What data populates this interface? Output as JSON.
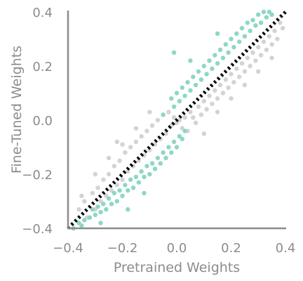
{
  "chart_data": {
    "type": "scatter",
    "title": "",
    "xlabel": "Pretrained Weights",
    "ylabel": "Fine-Tuned Weights",
    "xlim": [
      -0.4,
      0.4
    ],
    "ylim": [
      -0.4,
      0.4
    ],
    "xticks": [
      -0.4,
      -0.2,
      0.0,
      0.2,
      0.4
    ],
    "yticks": [
      -0.4,
      -0.2,
      0.0,
      0.2,
      0.4
    ],
    "xtick_labels": [
      "−0.4",
      "−0.2",
      "0.0",
      "0.2",
      "0.4"
    ],
    "ytick_labels": [
      "−0.4",
      "−0.2",
      "0.0",
      "0.2",
      "0.4"
    ],
    "grid": false,
    "reference_line": {
      "style": "dotted",
      "color": "#000000",
      "x": [
        -0.4,
        0.4
      ],
      "y": [
        -0.4,
        0.4
      ]
    },
    "series": [
      {
        "color": "#d3d3d3",
        "points": [
          [
            -0.36,
            -0.33
          ],
          [
            -0.34,
            -0.3
          ],
          [
            -0.33,
            -0.36
          ],
          [
            -0.31,
            -0.27
          ],
          [
            -0.3,
            -0.33
          ],
          [
            -0.29,
            -0.25
          ],
          [
            -0.28,
            -0.3
          ],
          [
            -0.27,
            -0.22
          ],
          [
            -0.26,
            -0.28
          ],
          [
            -0.25,
            -0.2
          ],
          [
            -0.24,
            -0.26
          ],
          [
            -0.23,
            -0.17
          ],
          [
            -0.22,
            -0.24
          ],
          [
            -0.21,
            -0.15
          ],
          [
            -0.2,
            -0.22
          ],
          [
            -0.19,
            -0.12
          ],
          [
            -0.18,
            -0.19
          ],
          [
            -0.17,
            -0.1
          ],
          [
            -0.16,
            -0.17
          ],
          [
            -0.15,
            -0.08
          ],
          [
            -0.14,
            -0.15
          ],
          [
            -0.13,
            -0.06
          ],
          [
            -0.12,
            -0.13
          ],
          [
            -0.11,
            -0.04
          ],
          [
            -0.1,
            -0.11
          ],
          [
            -0.09,
            -0.02
          ],
          [
            -0.08,
            -0.09
          ],
          [
            -0.07,
            0.0
          ],
          [
            -0.06,
            -0.07
          ],
          [
            -0.05,
            0.02
          ],
          [
            -0.04,
            -0.05
          ],
          [
            -0.03,
            0.03
          ],
          [
            -0.02,
            -0.02
          ],
          [
            -0.01,
            0.01
          ],
          [
            0.0,
            -0.01
          ],
          [
            0.01,
            0.0
          ],
          [
            0.02,
            -0.03
          ],
          [
            0.03,
            0.01
          ],
          [
            0.04,
            -0.04
          ],
          [
            0.05,
            0.03
          ],
          [
            0.06,
            0.01
          ],
          [
            0.07,
            -0.01
          ],
          [
            0.08,
            0.05
          ],
          [
            0.09,
            0.02
          ],
          [
            0.1,
            0.07
          ],
          [
            0.11,
            0.04
          ],
          [
            0.12,
            0.09
          ],
          [
            0.13,
            0.06
          ],
          [
            0.14,
            0.11
          ],
          [
            0.15,
            0.08
          ],
          [
            0.16,
            0.13
          ],
          [
            0.17,
            0.1
          ],
          [
            0.18,
            0.15
          ],
          [
            0.19,
            0.12
          ],
          [
            0.2,
            0.17
          ],
          [
            0.21,
            0.14
          ],
          [
            0.22,
            0.19
          ],
          [
            0.23,
            0.16
          ],
          [
            0.24,
            0.21
          ],
          [
            0.25,
            0.18
          ],
          [
            0.26,
            0.23
          ],
          [
            0.27,
            0.2
          ],
          [
            0.28,
            0.25
          ],
          [
            0.29,
            0.22
          ],
          [
            0.3,
            0.27
          ],
          [
            0.31,
            0.24
          ],
          [
            0.32,
            0.29
          ],
          [
            0.33,
            0.26
          ],
          [
            0.34,
            0.31
          ],
          [
            0.35,
            0.28
          ],
          [
            0.36,
            0.33
          ],
          [
            0.37,
            0.3
          ],
          [
            0.38,
            0.36
          ],
          [
            0.39,
            0.34
          ],
          [
            -0.2,
            -0.09
          ],
          [
            -0.25,
            -0.14
          ],
          [
            -0.3,
            -0.2
          ],
          [
            -0.15,
            -0.03
          ],
          [
            0.15,
            0.03
          ],
          [
            0.2,
            0.08
          ],
          [
            0.25,
            0.13
          ],
          [
            0.3,
            0.18
          ],
          [
            0.35,
            0.23
          ],
          [
            -0.1,
            0.03
          ],
          [
            0.1,
            -0.05
          ],
          [
            -0.35,
            -0.28
          ],
          [
            -0.22,
            -0.08
          ]
        ]
      },
      {
        "color": "#8dd7c5",
        "points": [
          [
            -0.38,
            -0.4
          ],
          [
            -0.36,
            -0.38
          ],
          [
            -0.35,
            -0.39
          ],
          [
            -0.34,
            -0.37
          ],
          [
            -0.32,
            -0.36
          ],
          [
            -0.31,
            -0.33
          ],
          [
            -0.3,
            -0.35
          ],
          [
            -0.29,
            -0.32
          ],
          [
            -0.28,
            -0.34
          ],
          [
            -0.27,
            -0.31
          ],
          [
            -0.26,
            -0.33
          ],
          [
            -0.25,
            -0.29
          ],
          [
            -0.24,
            -0.31
          ],
          [
            -0.23,
            -0.27
          ],
          [
            -0.22,
            -0.3
          ],
          [
            -0.21,
            -0.26
          ],
          [
            -0.2,
            -0.28
          ],
          [
            -0.19,
            -0.24
          ],
          [
            -0.18,
            -0.26
          ],
          [
            -0.17,
            -0.22
          ],
          [
            -0.16,
            -0.25
          ],
          [
            -0.15,
            -0.21
          ],
          [
            -0.14,
            -0.23
          ],
          [
            -0.13,
            -0.19
          ],
          [
            -0.12,
            -0.21
          ],
          [
            -0.11,
            -0.17
          ],
          [
            -0.1,
            -0.2
          ],
          [
            -0.09,
            -0.16
          ],
          [
            -0.08,
            -0.18
          ],
          [
            -0.07,
            -0.14
          ],
          [
            -0.06,
            -0.16
          ],
          [
            -0.05,
            -0.12
          ],
          [
            -0.04,
            -0.14
          ],
          [
            -0.03,
            -0.1
          ],
          [
            -0.02,
            -0.12
          ],
          [
            -0.01,
            -0.08
          ],
          [
            0.0,
            -0.1
          ],
          [
            0.01,
            -0.06
          ],
          [
            0.02,
            -0.07
          ],
          [
            0.03,
            -0.04
          ],
          [
            -0.02,
            0.08
          ],
          [
            -0.01,
            0.05
          ],
          [
            0.0,
            0.1
          ],
          [
            0.01,
            0.07
          ],
          [
            0.02,
            0.12
          ],
          [
            0.03,
            0.09
          ],
          [
            0.04,
            0.14
          ],
          [
            0.05,
            0.11
          ],
          [
            0.06,
            0.16
          ],
          [
            0.07,
            0.13
          ],
          [
            0.08,
            0.18
          ],
          [
            0.09,
            0.15
          ],
          [
            0.1,
            0.2
          ],
          [
            0.11,
            0.17
          ],
          [
            0.12,
            0.22
          ],
          [
            0.13,
            0.19
          ],
          [
            0.14,
            0.24
          ],
          [
            0.15,
            0.21
          ],
          [
            0.16,
            0.26
          ],
          [
            0.17,
            0.23
          ],
          [
            0.18,
            0.28
          ],
          [
            0.19,
            0.25
          ],
          [
            0.2,
            0.3
          ],
          [
            0.21,
            0.27
          ],
          [
            0.22,
            0.32
          ],
          [
            0.23,
            0.29
          ],
          [
            0.24,
            0.34
          ],
          [
            0.25,
            0.31
          ],
          [
            0.26,
            0.36
          ],
          [
            0.27,
            0.33
          ],
          [
            0.28,
            0.37
          ],
          [
            0.29,
            0.35
          ],
          [
            0.3,
            0.39
          ],
          [
            0.31,
            0.36
          ],
          [
            0.32,
            0.4
          ],
          [
            0.33,
            0.38
          ],
          [
            0.34,
            0.4
          ],
          [
            0.35,
            0.39
          ],
          [
            -0.01,
            0.25
          ],
          [
            0.05,
            0.22
          ],
          [
            -0.12,
            -0.27
          ],
          [
            -0.18,
            -0.33
          ],
          [
            -0.28,
            -0.38
          ],
          [
            0.15,
            0.32
          ],
          [
            -0.05,
            0.02
          ]
        ]
      }
    ]
  }
}
